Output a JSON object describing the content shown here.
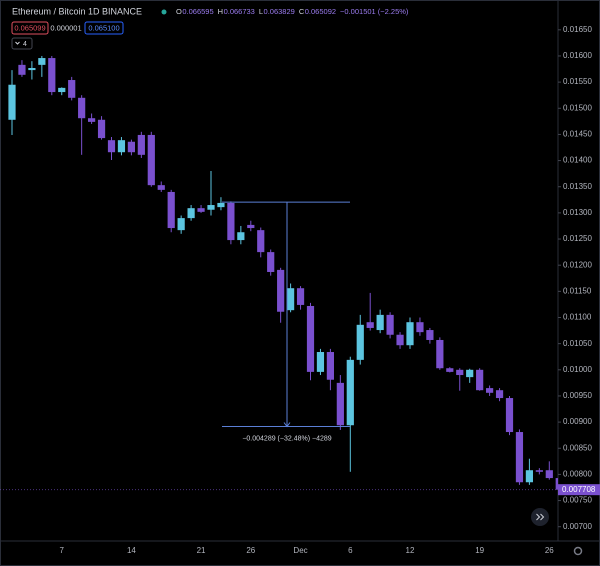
{
  "chart_data": {
    "type": "candlestick",
    "title": "Ethereum / Bitcoin  1D  BINANCE",
    "legend": [
      {
        "key": "O",
        "value": "0.066595"
      },
      {
        "key": "H",
        "value": "0.066733"
      },
      {
        "key": "L",
        "value": "0.063829"
      },
      {
        "key": "C",
        "value": "0.065092"
      }
    ],
    "change": "−0.001501 (−2.25%)",
    "trade_buttons": [
      "0.065099",
      "0.000001",
      "0.065100"
    ],
    "indicator_count": "4",
    "categories": [
      null,
      null,
      null,
      null,
      null,
      "7",
      null,
      null,
      null,
      null,
      null,
      null,
      "14",
      null,
      null,
      null,
      null,
      null,
      null,
      "21",
      null,
      null,
      null,
      null,
      "26",
      null,
      null,
      null,
      null,
      "Dec",
      null,
      null,
      null,
      null,
      "6",
      null,
      null,
      null,
      null,
      null,
      "12",
      null,
      null,
      null,
      null,
      null,
      null,
      "19",
      null,
      null,
      null,
      null,
      null,
      null,
      "26",
      null
    ],
    "series": [
      {
        "up_color": "#5cc5e0",
        "down_color": "#7a50cf",
        "open": [
          0.01478,
          0.01583,
          0.01573,
          0.01583,
          0.01596,
          0.01531,
          0.01554,
          0.0152,
          0.01481,
          0.01478,
          0.01439,
          0.01416,
          0.01436,
          0.01449,
          0.01449,
          0.01353,
          0.0134,
          0.01267,
          0.0129,
          0.01309,
          0.01306,
          0.01311,
          0.01319,
          0.01248,
          0.01277,
          0.01267,
          0.01225,
          0.01191,
          0.01114,
          0.01156,
          0.01122,
          0.00996,
          0.01034,
          0.00975,
          0.00894,
          0.01019,
          0.01091,
          0.01076,
          0.01105,
          0.01067,
          0.01047,
          0.01091,
          0.01076,
          0.01057,
          0.01003,
          0.01,
          0.00986,
          0.01,
          0.00965,
          0.00961,
          0.00946,
          0.00881,
          0.00785,
          0.00808,
          0.00808,
          0.00793
        ],
        "high": [
          0.01573,
          0.01592,
          0.0159,
          0.016,
          0.016,
          0.0154,
          0.0156,
          0.01525,
          0.0149,
          0.01485,
          0.01445,
          0.01445,
          0.0144,
          0.01455,
          0.01455,
          0.0136,
          0.01344,
          0.01295,
          0.01315,
          0.01315,
          0.0138,
          0.0133,
          0.01322,
          0.01275,
          0.01285,
          0.01272,
          0.0123,
          0.01195,
          0.01165,
          0.0116,
          0.01128,
          0.0104,
          0.0104,
          0.0099,
          0.01025,
          0.01105,
          0.01147,
          0.01115,
          0.0111,
          0.01072,
          0.011,
          0.011,
          0.0108,
          0.01062,
          0.01005,
          0.01003,
          0.01002,
          0.01003,
          0.0097,
          0.00965,
          0.0095,
          0.00886,
          0.0083,
          0.00812,
          0.00825,
          0.008
        ],
        "low": [
          0.01449,
          0.0156,
          0.01555,
          0.0156,
          0.01525,
          0.01525,
          0.01515,
          0.01411,
          0.0147,
          0.0144,
          0.01401,
          0.0141,
          0.0141,
          0.01405,
          0.0135,
          0.0134,
          0.01263,
          0.0126,
          0.01285,
          0.013,
          0.01295,
          0.01305,
          0.0124,
          0.0124,
          0.01265,
          0.01215,
          0.0118,
          0.0109,
          0.0111,
          0.01115,
          0.0098,
          0.0099,
          0.00961,
          0.00885,
          0.00805,
          0.0101,
          0.01075,
          0.0107,
          0.0106,
          0.0104,
          0.0104,
          0.01065,
          0.0105,
          0.01,
          0.00995,
          0.0096,
          0.00975,
          0.0096,
          0.0095,
          0.0094,
          0.00875,
          0.0078,
          0.0078,
          0.008,
          0.0079,
          0.00765
        ],
        "close": [
          0.01545,
          0.01564,
          0.01577,
          0.01596,
          0.01531,
          0.01539,
          0.0152,
          0.01481,
          0.01474,
          0.01443,
          0.01416,
          0.01439,
          0.01416,
          0.01411,
          0.01353,
          0.01344,
          0.01271,
          0.0129,
          0.01309,
          0.01302,
          0.01315,
          0.01319,
          0.01248,
          0.01263,
          0.01271,
          0.01225,
          0.01187,
          0.01111,
          0.01156,
          0.01124,
          0.00996,
          0.01034,
          0.00981,
          0.00894,
          0.01019,
          0.01086,
          0.0108,
          0.01105,
          0.01067,
          0.01047,
          0.01091,
          0.01072,
          0.01057,
          0.01003,
          0.00996,
          0.0099,
          0.01,
          0.00961,
          0.00956,
          0.00946,
          0.00881,
          0.00785,
          0.00808,
          0.00805,
          0.00793,
          0.007708
        ]
      }
    ],
    "measure": {
      "start": 0.013205,
      "end": 0.008916,
      "label": "−0.004289 (−32.48%) −4289"
    },
    "ylim": [
      0.006746,
      0.01707
    ],
    "yticks": [
      {
        "value": 0.007,
        "label": "0.00700"
      },
      {
        "value": 0.0075,
        "label": "0.00750"
      },
      {
        "value": 0.008,
        "label": "0.00800"
      },
      {
        "value": 0.0085,
        "label": "0.00850"
      },
      {
        "value": 0.009,
        "label": "0.00900"
      },
      {
        "value": 0.0095,
        "label": "0.00950"
      },
      {
        "value": 0.01,
        "label": "0.01000"
      },
      {
        "value": 0.0105,
        "label": "0.01050"
      },
      {
        "value": 0.011,
        "label": "0.01100"
      },
      {
        "value": 0.0115,
        "label": "0.01150"
      },
      {
        "value": 0.012,
        "label": "0.01200"
      },
      {
        "value": 0.0125,
        "label": "0.01250"
      },
      {
        "value": 0.013,
        "label": "0.01300"
      },
      {
        "value": 0.0135,
        "label": "0.01350"
      },
      {
        "value": 0.014,
        "label": "0.01400"
      },
      {
        "value": 0.0145,
        "label": "0.01450"
      },
      {
        "value": 0.015,
        "label": "0.01500"
      },
      {
        "value": 0.0155,
        "label": "0.01550"
      },
      {
        "value": 0.016,
        "label": "0.01600"
      },
      {
        "value": 0.0165,
        "label": "0.01650"
      }
    ],
    "grid": false
  }
}
